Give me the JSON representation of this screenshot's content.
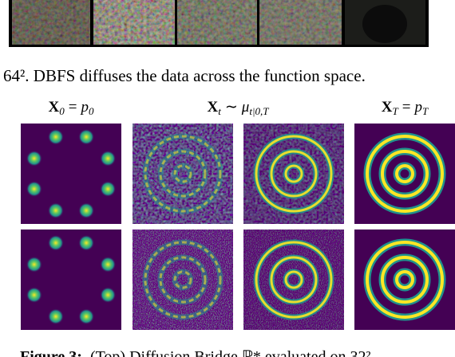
{
  "text_line": "64². DBFS diffuses the data across the function space.",
  "headers": [
    {
      "main": "X",
      "sub": "0",
      "rel": "=",
      "rhs": "p",
      "rhs_sub": "0"
    },
    {
      "main": "X",
      "sub": "t",
      "rel": "∼",
      "rhs": "μ",
      "rhs_sub": "t|0,T"
    },
    {
      "main": "X",
      "sub": "T",
      "rel": "=",
      "rhs": "p",
      "rhs_sub": "T"
    }
  ],
  "caption": {
    "label": "Figure 3:",
    "text": "(Top) Diffusion Bridge ℙ* evaluated on 32²"
  }
}
